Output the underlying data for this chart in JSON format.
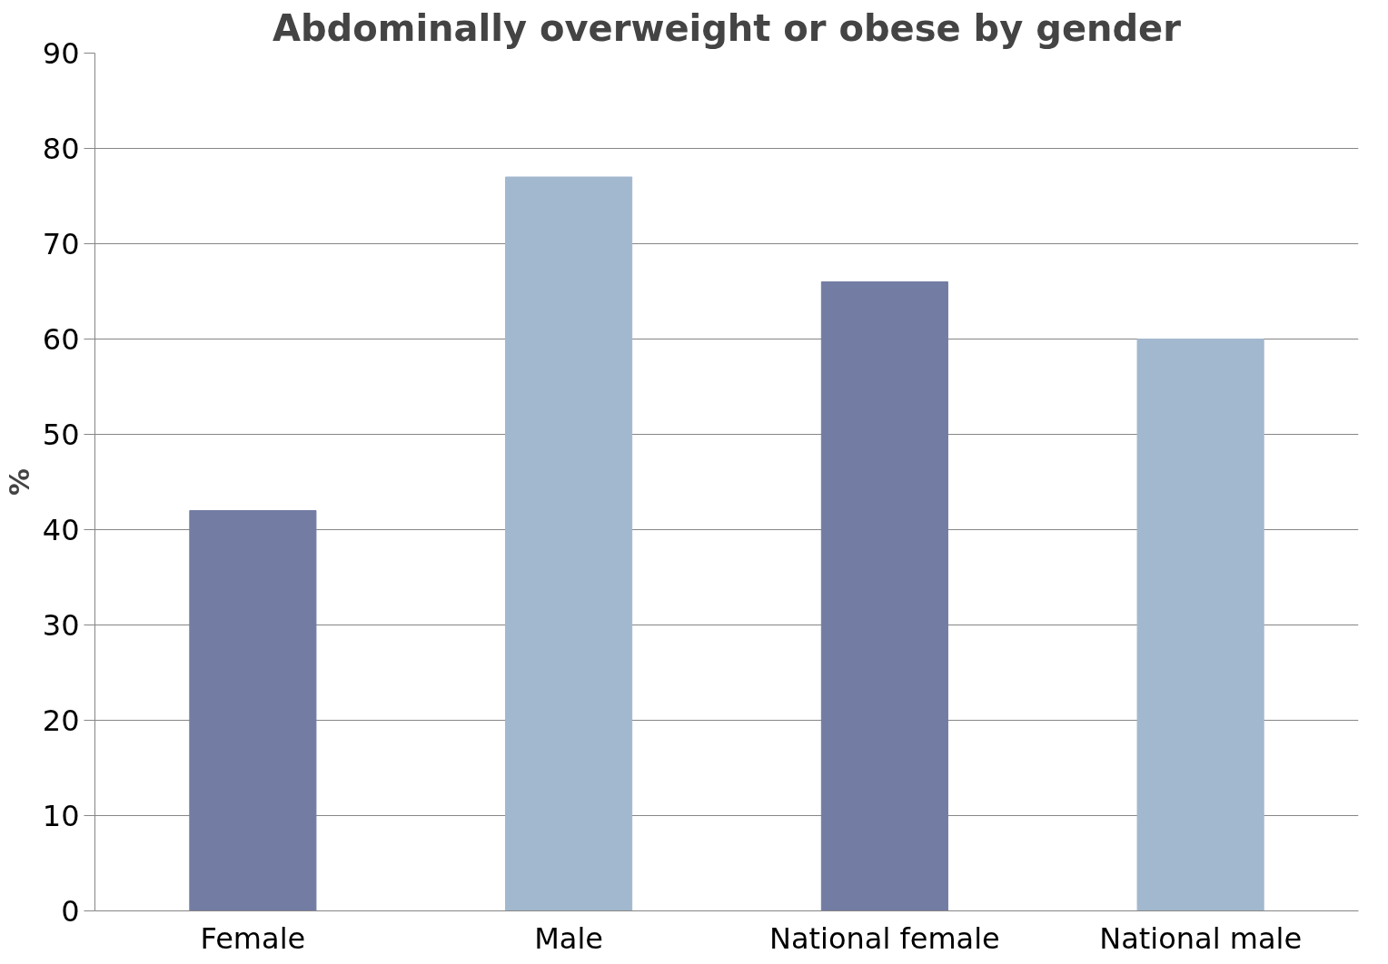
{
  "chart_data": {
    "type": "bar",
    "title": "Abdominally overweight or obese by gender",
    "ylabel": "%",
    "categories": [
      "Female",
      "Male",
      "National female",
      "National male"
    ],
    "values": [
      42,
      77,
      66,
      60
    ],
    "colors": [
      "#737ca3",
      "#a2b8ce",
      "#737ca3",
      "#a2b8ce"
    ],
    "ylim": [
      0,
      90
    ],
    "yticks": [
      0,
      10,
      20,
      30,
      40,
      50,
      60,
      70,
      80,
      90
    ],
    "grid": "y"
  }
}
